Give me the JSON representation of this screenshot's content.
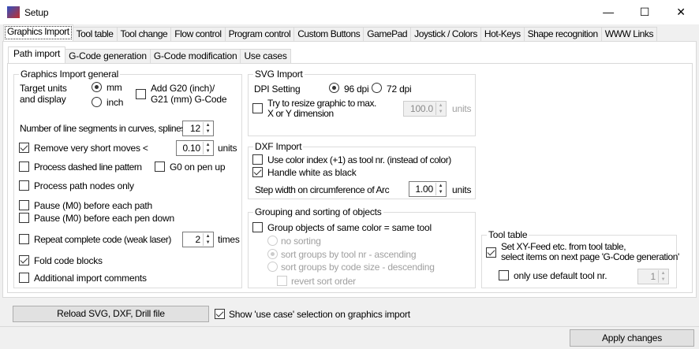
{
  "window": {
    "title": "Setup",
    "minimize": "—",
    "maximize": "☐",
    "close": "✕"
  },
  "outer_tabs": [
    "Graphics Import",
    "Tool table",
    "Tool change",
    "Flow control",
    "Program control",
    "Custom Buttons",
    "GamePad",
    "Joystick / Colors",
    "Hot-Keys",
    "Shape recognition",
    "WWW Links"
  ],
  "inner_tabs": [
    "Path import",
    "G-Code generation",
    "G-Code modification",
    "Use cases"
  ],
  "general": {
    "title": "Graphics Import general",
    "target_units": "Target units\nand display",
    "mm": "mm",
    "inch": "inch",
    "units_selected": "mm",
    "add_g20": "Add G20 (inch)/\nG21 (mm) G-Code",
    "add_g20_checked": false,
    "segments_label": "Number of line segments in curves, splines",
    "segments_value": "12",
    "remove_short": "Remove very short moves <",
    "remove_short_checked": true,
    "remove_short_value": "0.10",
    "units": "units",
    "dashed": "Process dashed line pattern",
    "g0_pen_up": "G0 on pen up",
    "nodes_only": "Process path nodes only",
    "pause_path": "Pause (M0) before each path",
    "pause_pen": "Pause (M0) before each pen down",
    "repeat": "Repeat complete code (weak laser)",
    "repeat_value": "2",
    "times": "times",
    "fold": "Fold code blocks",
    "fold_checked": true,
    "comments": "Additional import comments"
  },
  "svg": {
    "title": "SVG Import",
    "dpi_label": "DPI Setting",
    "dpi96": "96 dpi",
    "dpi72": "72 dpi",
    "dpi_selected": "96 dpi",
    "resize": "Try to resize graphic to max.\nX or Y dimension",
    "resize_value": "100.0",
    "units": "units"
  },
  "dxf": {
    "title": "DXF Import",
    "color_index": "Use color index (+1) as tool nr. (instead of color)",
    "white_black": "Handle white as black",
    "white_black_checked": true,
    "step_label": "Step width on circumference of Arc",
    "step_value": "1.00",
    "units": "units"
  },
  "grouping": {
    "title": "Grouping and sorting of objects",
    "group_same": "Group objects of same color = same tool",
    "options": [
      "no sorting",
      "sort groups by tool nr - ascending",
      "sort groups by code size - descending"
    ],
    "selected": "sort groups by tool nr - ascending",
    "revert": "revert sort order"
  },
  "tooltable": {
    "title": "Tool table",
    "set_feed": "Set XY-Feed etc. from tool table,\nselect items on next page 'G-Code generation'",
    "set_feed_checked": true,
    "only_default": "only use default tool nr.",
    "default_value": "1"
  },
  "reload_button": "Reload SVG, DXF, Drill file",
  "show_use_case": "Show 'use case' selection on graphics import",
  "show_use_case_checked": true,
  "apply_button": "Apply changes"
}
